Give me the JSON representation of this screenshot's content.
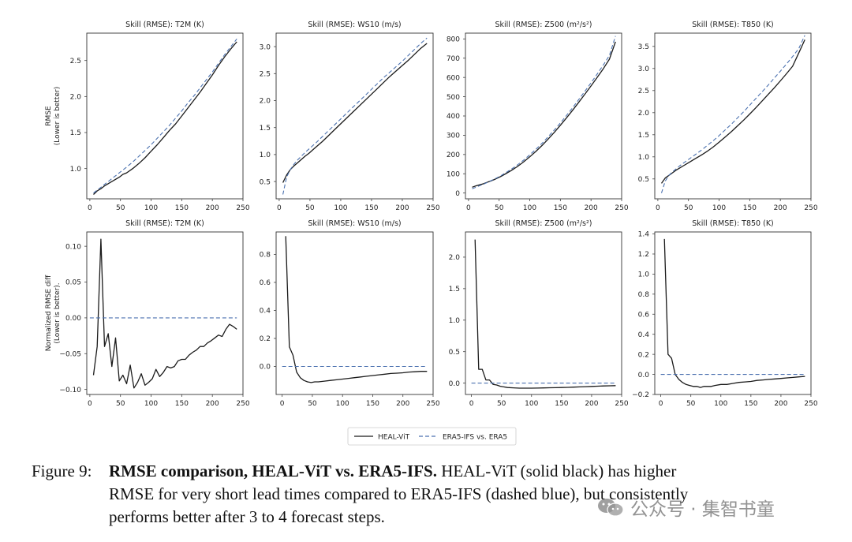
{
  "chart_data": [
    {
      "type": "line",
      "title": "Skill (RMSE): T2M (K)",
      "ylabel": [
        "RMSE",
        "(Lower is better)"
      ],
      "xlim": [
        -5,
        250
      ],
      "ylim": [
        0.58,
        2.88
      ],
      "xticks": [
        0,
        50,
        100,
        150,
        200,
        250
      ],
      "yticks": [
        1.0,
        1.5,
        2.0,
        2.5
      ],
      "ytick_labels": [
        "1.0",
        "1.5",
        "2.0",
        "2.5"
      ],
      "series": [
        {
          "name": "HEAL-ViT",
          "x": [
            6,
            12,
            18,
            24,
            30,
            36,
            42,
            48,
            54,
            60,
            70,
            80,
            90,
            100,
            110,
            120,
            130,
            140,
            150,
            160,
            170,
            180,
            190,
            200,
            210,
            220,
            230,
            240
          ],
          "values": [
            0.64,
            0.69,
            0.72,
            0.76,
            0.79,
            0.82,
            0.85,
            0.88,
            0.92,
            0.94,
            1.0,
            1.07,
            1.15,
            1.24,
            1.33,
            1.43,
            1.53,
            1.62,
            1.73,
            1.84,
            1.95,
            2.06,
            2.18,
            2.3,
            2.43,
            2.55,
            2.66,
            2.76
          ]
        },
        {
          "name": "ERA5-IFS vs. ERA5",
          "x": [
            6,
            12,
            18,
            24,
            30,
            36,
            42,
            48,
            54,
            60,
            70,
            80,
            90,
            100,
            110,
            120,
            130,
            140,
            150,
            160,
            170,
            180,
            190,
            200,
            210,
            220,
            230,
            240
          ],
          "values": [
            0.66,
            0.7,
            0.74,
            0.78,
            0.82,
            0.86,
            0.9,
            0.94,
            0.98,
            1.02,
            1.09,
            1.17,
            1.25,
            1.33,
            1.42,
            1.51,
            1.6,
            1.7,
            1.8,
            1.91,
            2.01,
            2.12,
            2.23,
            2.34,
            2.46,
            2.58,
            2.69,
            2.8
          ]
        }
      ]
    },
    {
      "type": "line",
      "title": "Skill (RMSE): WS10 (m/s)",
      "xlim": [
        -5,
        250
      ],
      "ylim": [
        0.18,
        3.25
      ],
      "xticks": [
        0,
        50,
        100,
        150,
        200,
        250
      ],
      "yticks": [
        0.5,
        1.0,
        1.5,
        2.0,
        2.5,
        3.0
      ],
      "ytick_labels": [
        "0.5",
        "1.0",
        "1.5",
        "2.0",
        "2.5",
        "3.0"
      ],
      "series": [
        {
          "name": "HEAL-ViT",
          "x": [
            6,
            12,
            18,
            24,
            30,
            36,
            42,
            48,
            54,
            60,
            70,
            80,
            90,
            100,
            110,
            120,
            130,
            140,
            150,
            160,
            170,
            180,
            190,
            200,
            210,
            220,
            230,
            240
          ],
          "values": [
            0.48,
            0.62,
            0.72,
            0.79,
            0.85,
            0.91,
            0.97,
            1.02,
            1.08,
            1.14,
            1.24,
            1.35,
            1.46,
            1.57,
            1.68,
            1.79,
            1.9,
            2.01,
            2.12,
            2.23,
            2.34,
            2.45,
            2.55,
            2.65,
            2.75,
            2.86,
            2.97,
            3.06
          ]
        },
        {
          "name": "ERA5-IFS vs. ERA5",
          "x": [
            6,
            12,
            18,
            24,
            30,
            36,
            42,
            48,
            54,
            60,
            70,
            80,
            90,
            100,
            110,
            120,
            130,
            140,
            150,
            160,
            170,
            180,
            190,
            200,
            210,
            220,
            230,
            240
          ],
          "values": [
            0.26,
            0.58,
            0.72,
            0.82,
            0.9,
            0.97,
            1.04,
            1.1,
            1.16,
            1.22,
            1.33,
            1.44,
            1.55,
            1.66,
            1.77,
            1.88,
            1.99,
            2.1,
            2.21,
            2.32,
            2.43,
            2.53,
            2.63,
            2.73,
            2.84,
            2.95,
            3.06,
            3.16
          ]
        }
      ]
    },
    {
      "type": "line",
      "title": "Skill (RMSE): Z500 (m²/s²)",
      "xlim": [
        -5,
        250
      ],
      "ylim": [
        -30,
        830
      ],
      "xticks": [
        0,
        50,
        100,
        150,
        200,
        250
      ],
      "yticks": [
        0,
        100,
        200,
        300,
        400,
        500,
        600,
        700,
        800
      ],
      "ytick_labels": [
        "0",
        "100",
        "200",
        "300",
        "400",
        "500",
        "600",
        "700",
        "800"
      ],
      "series": [
        {
          "name": "HEAL-ViT",
          "x": [
            6,
            12,
            18,
            24,
            30,
            36,
            42,
            48,
            54,
            60,
            70,
            80,
            90,
            100,
            110,
            120,
            130,
            140,
            150,
            160,
            170,
            180,
            190,
            200,
            210,
            220,
            230,
            240
          ],
          "values": [
            30,
            37,
            43,
            48,
            55,
            62,
            70,
            79,
            88,
            99,
            117,
            138,
            162,
            188,
            216,
            247,
            280,
            315,
            352,
            390,
            430,
            471,
            513,
            556,
            600,
            645,
            695,
            785
          ]
        },
        {
          "name": "ERA5-IFS vs. ERA5",
          "x": [
            6,
            12,
            18,
            24,
            30,
            36,
            42,
            48,
            54,
            60,
            70,
            80,
            90,
            100,
            110,
            120,
            130,
            140,
            150,
            160,
            170,
            180,
            190,
            200,
            210,
            220,
            230,
            240
          ],
          "values": [
            22,
            30,
            38,
            45,
            54,
            63,
            72,
            82,
            92,
            104,
            124,
            146,
            171,
            198,
            227,
            258,
            292,
            327,
            364,
            403,
            443,
            485,
            528,
            572,
            617,
            664,
            714,
            815
          ]
        }
      ]
    },
    {
      "type": "line",
      "title": "Skill (RMSE): T850 (K)",
      "xlim": [
        -5,
        250
      ],
      "ylim": [
        0.05,
        3.8
      ],
      "xticks": [
        0,
        50,
        100,
        150,
        200,
        250
      ],
      "yticks": [
        0.5,
        1.0,
        1.5,
        2.0,
        2.5,
        3.0,
        3.5
      ],
      "ytick_labels": [
        "0.5",
        "1.0",
        "1.5",
        "2.0",
        "2.5",
        "3.0",
        "3.5"
      ],
      "series": [
        {
          "name": "HEAL-ViT",
          "x": [
            6,
            12,
            18,
            24,
            30,
            36,
            42,
            48,
            54,
            60,
            70,
            80,
            90,
            100,
            110,
            120,
            130,
            140,
            150,
            160,
            170,
            180,
            190,
            200,
            210,
            220,
            230,
            240
          ],
          "values": [
            0.4,
            0.52,
            0.58,
            0.64,
            0.7,
            0.75,
            0.8,
            0.85,
            0.9,
            0.95,
            1.03,
            1.12,
            1.22,
            1.33,
            1.45,
            1.57,
            1.7,
            1.83,
            1.97,
            2.11,
            2.26,
            2.41,
            2.56,
            2.72,
            2.88,
            3.05,
            3.35,
            3.65
          ]
        },
        {
          "name": "ERA5-IFS vs. ERA5",
          "x": [
            6,
            12,
            18,
            24,
            30,
            36,
            42,
            48,
            54,
            60,
            70,
            80,
            90,
            100,
            110,
            120,
            130,
            140,
            150,
            160,
            170,
            180,
            190,
            200,
            210,
            220,
            230,
            240
          ],
          "values": [
            0.18,
            0.45,
            0.58,
            0.66,
            0.73,
            0.8,
            0.86,
            0.92,
            0.98,
            1.04,
            1.14,
            1.25,
            1.36,
            1.48,
            1.61,
            1.74,
            1.88,
            2.02,
            2.17,
            2.32,
            2.47,
            2.62,
            2.78,
            2.94,
            3.1,
            3.27,
            3.45,
            3.75
          ]
        }
      ]
    },
    {
      "type": "line",
      "title": "Skill (RMSE): T2M (K)",
      "ylabel": [
        "Normalized RMSE diff",
        "(Lower is better)."
      ],
      "xlim": [
        -5,
        250
      ],
      "ylim": [
        -0.107,
        0.12
      ],
      "xticks": [
        0,
        50,
        100,
        150,
        200,
        250
      ],
      "yticks": [
        -0.1,
        -0.05,
        0.0,
        0.05,
        0.1
      ],
      "ytick_labels": [
        "−0.10",
        "−0.05",
        "0.00",
        "0.05",
        "0.10"
      ],
      "series": [
        {
          "name": "HEAL-ViT",
          "x": [
            6,
            12,
            18,
            24,
            30,
            36,
            42,
            48,
            54,
            60,
            66,
            72,
            78,
            84,
            90,
            96,
            102,
            108,
            114,
            120,
            126,
            132,
            138,
            144,
            150,
            156,
            162,
            168,
            174,
            180,
            186,
            192,
            198,
            204,
            210,
            216,
            222,
            228,
            234,
            240
          ],
          "values": [
            -0.08,
            -0.04,
            0.11,
            -0.04,
            -0.022,
            -0.068,
            -0.028,
            -0.088,
            -0.08,
            -0.092,
            -0.066,
            -0.098,
            -0.09,
            -0.078,
            -0.094,
            -0.09,
            -0.085,
            -0.072,
            -0.082,
            -0.076,
            -0.068,
            -0.07,
            -0.068,
            -0.06,
            -0.058,
            -0.058,
            -0.052,
            -0.048,
            -0.045,
            -0.04,
            -0.04,
            -0.035,
            -0.032,
            -0.028,
            -0.024,
            -0.026,
            -0.016,
            -0.009,
            -0.012,
            -0.016
          ]
        },
        {
          "name": "ERA5-IFS vs. ERA5",
          "x": [
            0,
            240
          ],
          "values": [
            0,
            0
          ]
        }
      ]
    },
    {
      "type": "line",
      "title": "Skill (RMSE): WS10 (m/s)",
      "xlim": [
        -10,
        250
      ],
      "ylim": [
        -0.2,
        0.96
      ],
      "xticks": [
        0,
        50,
        100,
        150,
        200,
        250
      ],
      "yticks": [
        0.0,
        0.2,
        0.4,
        0.6,
        0.8
      ],
      "ytick_labels": [
        "0.0",
        "0.2",
        "0.4",
        "0.6",
        "0.8"
      ],
      "series": [
        {
          "name": "HEAL-ViT",
          "x": [
            6,
            12,
            18,
            24,
            30,
            36,
            42,
            48,
            54,
            60,
            70,
            80,
            90,
            100,
            110,
            120,
            130,
            140,
            150,
            160,
            170,
            180,
            190,
            200,
            210,
            220,
            230,
            240
          ],
          "values": [
            0.93,
            0.14,
            0.08,
            -0.04,
            -0.08,
            -0.1,
            -0.11,
            -0.115,
            -0.11,
            -0.11,
            -0.105,
            -0.1,
            -0.095,
            -0.09,
            -0.085,
            -0.08,
            -0.075,
            -0.07,
            -0.065,
            -0.06,
            -0.055,
            -0.05,
            -0.048,
            -0.045,
            -0.04,
            -0.038,
            -0.035,
            -0.035
          ]
        },
        {
          "name": "ERA5-IFS vs. ERA5",
          "x": [
            0,
            240
          ],
          "values": [
            0,
            0
          ]
        }
      ]
    },
    {
      "type": "line",
      "title": "Skill (RMSE): Z500 (m²/s²)",
      "xlim": [
        -10,
        250
      ],
      "ylim": [
        -0.18,
        2.4
      ],
      "xticks": [
        0,
        50,
        100,
        150,
        200,
        250
      ],
      "yticks": [
        0.0,
        0.5,
        1.0,
        1.5,
        2.0
      ],
      "ytick_labels": [
        "0.0",
        "0.5",
        "1.0",
        "1.5",
        "2.0"
      ],
      "series": [
        {
          "name": "HEAL-ViT",
          "x": [
            6,
            12,
            18,
            24,
            30,
            36,
            42,
            48,
            54,
            60,
            70,
            80,
            90,
            100,
            110,
            120,
            130,
            140,
            150,
            160,
            170,
            180,
            190,
            200,
            210,
            220,
            230,
            240
          ],
          "values": [
            2.28,
            0.22,
            0.22,
            0.05,
            0.05,
            -0.02,
            -0.03,
            -0.05,
            -0.06,
            -0.07,
            -0.075,
            -0.08,
            -0.08,
            -0.08,
            -0.078,
            -0.076,
            -0.074,
            -0.072,
            -0.07,
            -0.067,
            -0.064,
            -0.06,
            -0.056,
            -0.052,
            -0.048,
            -0.045,
            -0.042,
            -0.04
          ]
        },
        {
          "name": "ERA5-IFS vs. ERA5",
          "x": [
            0,
            240
          ],
          "values": [
            0,
            0
          ]
        }
      ]
    },
    {
      "type": "line",
      "title": "Skill (RMSE): T850 (K)",
      "xlim": [
        -10,
        250
      ],
      "ylim": [
        -0.2,
        1.42
      ],
      "xticks": [
        0,
        50,
        100,
        150,
        200,
        250
      ],
      "yticks": [
        -0.2,
        0.0,
        0.2,
        0.4,
        0.6,
        0.8,
        1.0,
        1.2,
        1.4
      ],
      "ytick_labels": [
        "−0.2",
        "0.0",
        "0.2",
        "0.4",
        "0.6",
        "0.8",
        "1.0",
        "1.2",
        "1.4"
      ],
      "series": [
        {
          "name": "HEAL-ViT",
          "x": [
            6,
            12,
            18,
            24,
            30,
            36,
            42,
            48,
            54,
            60,
            66,
            72,
            78,
            84,
            90,
            100,
            110,
            120,
            130,
            140,
            150,
            160,
            170,
            180,
            190,
            200,
            210,
            220,
            230,
            240
          ],
          "values": [
            1.35,
            0.2,
            0.16,
            0.0,
            -0.05,
            -0.08,
            -0.1,
            -0.11,
            -0.12,
            -0.12,
            -0.13,
            -0.12,
            -0.12,
            -0.12,
            -0.11,
            -0.1,
            -0.1,
            -0.09,
            -0.08,
            -0.075,
            -0.07,
            -0.06,
            -0.055,
            -0.05,
            -0.045,
            -0.04,
            -0.035,
            -0.03,
            -0.025,
            -0.02
          ]
        },
        {
          "name": "ERA5-IFS vs. ERA5",
          "x": [
            0,
            240
          ],
          "values": [
            0,
            0
          ]
        }
      ]
    }
  ],
  "legend": [
    {
      "label": "HEAL-ViT",
      "color": "#1a1a1a",
      "dash": false
    },
    {
      "label": "ERA5-IFS vs. ERA5",
      "color": "#4c72b0",
      "dash": true
    }
  ],
  "colors": {
    "heal": "#1a1a1a",
    "era": "#4c72b0"
  },
  "caption": {
    "figure_no": "Figure 9:",
    "bold": "RMSE comparison, HEAL-ViT vs. ERA5-IFS.",
    "line1": "HEAL-ViT (solid black) has higher",
    "line2": "RMSE for very short lead times compared to ERA5-IFS (dashed blue), but consistently",
    "line3": "performs better after 3 to 4 forecast steps."
  },
  "watermark": {
    "text": "公众号 · 集智书童"
  }
}
